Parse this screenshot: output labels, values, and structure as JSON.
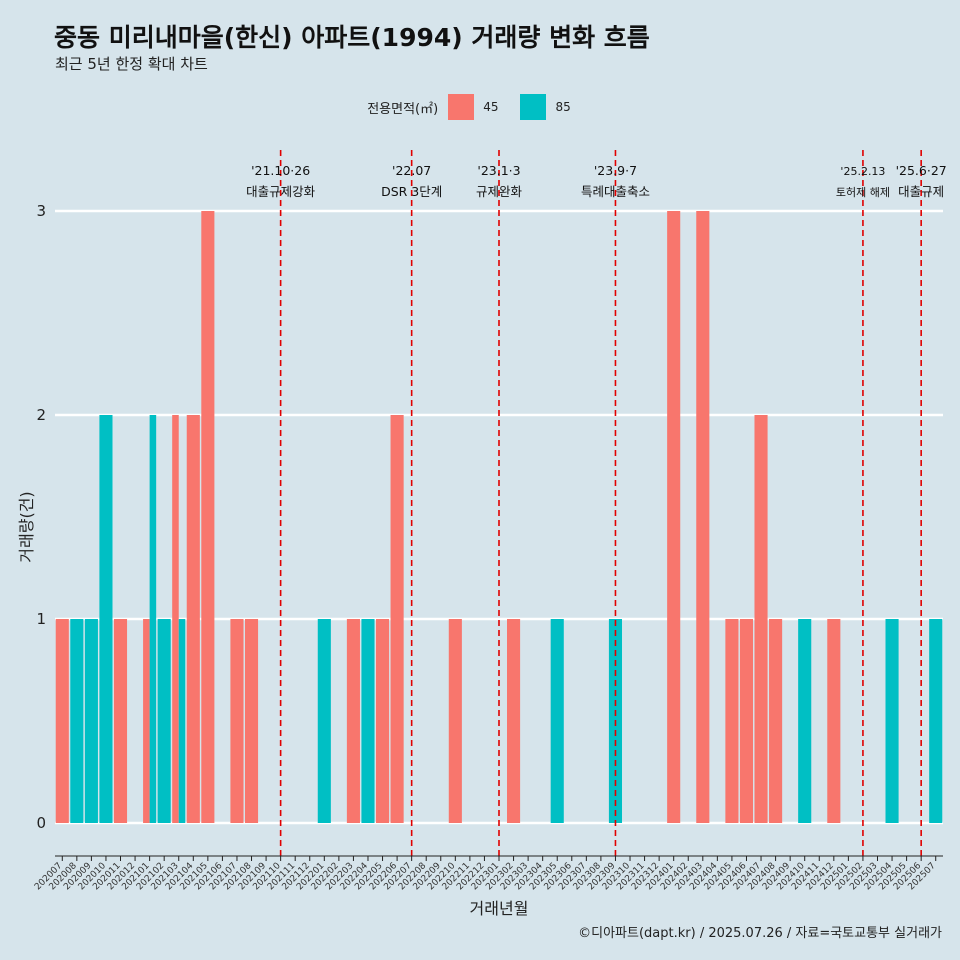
{
  "title": "중동 미리내마을(한신) 아파트(1994) 거래량 변화 흐름",
  "subtitle": "최근 5년 한정 확대 차트",
  "caption": "©디아파트(dapt.kr) / 2025.07.26 / 자료=국토교통부 실거래가",
  "colors": {
    "45": "#f8766d",
    "85": "#00bfc4",
    "background": "#d6e4eb",
    "event_line": "#e00000"
  },
  "chart_data": {
    "type": "bar",
    "xlabel": "거래년월",
    "ylabel": "거래량(건)",
    "ylim": [
      0,
      3
    ],
    "yticks": [
      0,
      1,
      2,
      3
    ],
    "grid": true,
    "legend": {
      "title": "전용면적(㎡)",
      "entries": [
        "45",
        "85"
      ],
      "position": "top"
    },
    "categories": [
      "202007",
      "202008",
      "202009",
      "202010",
      "202011",
      "202012",
      "202101",
      "202102",
      "202103",
      "202104",
      "202105",
      "202106",
      "202107",
      "202108",
      "202109",
      "202110",
      "202111",
      "202112",
      "202201",
      "202202",
      "202203",
      "202204",
      "202205",
      "202206",
      "202207",
      "202208",
      "202209",
      "202210",
      "202211",
      "202212",
      "202301",
      "202302",
      "202303",
      "202304",
      "202305",
      "202306",
      "202307",
      "202308",
      "202309",
      "202310",
      "202311",
      "202312",
      "202401",
      "202402",
      "202403",
      "202404",
      "202405",
      "202406",
      "202407",
      "202408",
      "202409",
      "202410",
      "202411",
      "202412",
      "202501",
      "202502",
      "202503",
      "202504",
      "202505",
      "202506",
      "202507"
    ],
    "series": [
      {
        "name": "45",
        "values": [
          1,
          0,
          0,
          0,
          1,
          0,
          1,
          0,
          2,
          2,
          3,
          0,
          1,
          1,
          0,
          0,
          0,
          0,
          0,
          0,
          1,
          0,
          1,
          2,
          0,
          0,
          0,
          1,
          0,
          0,
          0,
          1,
          0,
          0,
          0,
          0,
          0,
          0,
          0,
          0,
          0,
          0,
          3,
          0,
          3,
          0,
          1,
          1,
          2,
          1,
          0,
          0,
          0,
          1,
          0,
          0,
          0,
          0,
          0,
          0,
          0
        ]
      },
      {
        "name": "85",
        "values": [
          0,
          1,
          1,
          2,
          0,
          0,
          2,
          1,
          1,
          0,
          0,
          0,
          0,
          0,
          0,
          0,
          0,
          0,
          1,
          0,
          0,
          1,
          0,
          0,
          0,
          0,
          0,
          0,
          0,
          0,
          0,
          0,
          0,
          0,
          1,
          0,
          0,
          0,
          1,
          0,
          0,
          0,
          0,
          0,
          0,
          0,
          0,
          0,
          0,
          0,
          0,
          1,
          0,
          0,
          0,
          0,
          0,
          1,
          0,
          0,
          1
        ]
      }
    ],
    "events": [
      {
        "date": "202110",
        "label1": "'21.10·26",
        "label2": "대출규제강화"
      },
      {
        "date": "202207",
        "label1": "'22.07",
        "label2": "DSR 3단계"
      },
      {
        "date": "202301",
        "label1": "'23.1·3",
        "label2": "규제완화"
      },
      {
        "date": "202309",
        "label1": "'23.9·7",
        "label2": "특례대출축소"
      },
      {
        "date": "202502",
        "label1": "'25.2.13",
        "label2": "토허제 해제"
      },
      {
        "date": "202506",
        "label1": "'25.6·27",
        "label2": "대출규제"
      }
    ]
  }
}
